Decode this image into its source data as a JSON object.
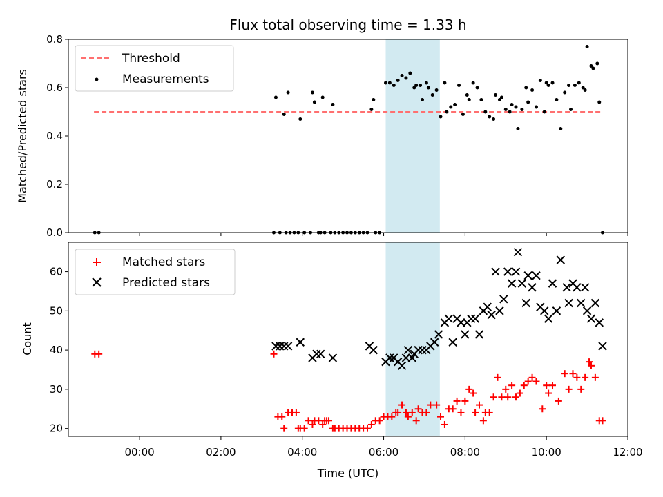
{
  "chart_data": {
    "type": "scatter",
    "title": "Flux total observing time = 1.33 h",
    "xlabel": "Time (UTC)",
    "x_unit": "hours UTC",
    "xlim": [
      -1.75,
      12.0
    ],
    "xticks": [
      0,
      2,
      4,
      6,
      8,
      10,
      12
    ],
    "xtick_labels": [
      "00:00",
      "02:00",
      "04:00",
      "06:00",
      "08:00",
      "10:00",
      "12:00"
    ],
    "observing_window": {
      "start": 6.05,
      "end": 7.38,
      "color": "#add8e6"
    },
    "panels": [
      {
        "ylabel": "Matched/Predicted stars",
        "ylim": [
          0,
          0.8
        ],
        "yticks": [
          0.0,
          0.2,
          0.4,
          0.6,
          0.8
        ],
        "ytick_labels": [
          "0.0",
          "0.2",
          "0.4",
          "0.6",
          "0.8"
        ],
        "legend": {
          "position": "upper-left",
          "entries": [
            "Threshold",
            "Measurements"
          ]
        },
        "series": [
          {
            "name": "Threshold",
            "kind": "dashed-line",
            "color": "#ff7070",
            "x": [
              -1.12,
              11.38
            ],
            "y": [
              0.5,
              0.5
            ]
          },
          {
            "name": "Measurements",
            "kind": "dot",
            "color": "#000000",
            "x": [
              -1.1,
              -1.0,
              3.3,
              3.35,
              3.45,
              3.55,
              3.6,
              3.65,
              3.7,
              3.8,
              3.9,
              3.95,
              4.05,
              4.2,
              4.25,
              4.3,
              4.4,
              4.45,
              4.5,
              4.55,
              4.7,
              4.75,
              4.8,
              4.9,
              5.0,
              5.1,
              5.2,
              5.3,
              5.4,
              5.5,
              5.6,
              5.7,
              5.75,
              5.8,
              5.9,
              6.05,
              6.15,
              6.25,
              6.35,
              6.45,
              6.55,
              6.65,
              6.75,
              6.8,
              6.9,
              6.95,
              7.05,
              7.1,
              7.2,
              7.3,
              7.4,
              7.5,
              7.55,
              7.65,
              7.75,
              7.85,
              7.95,
              8.05,
              8.1,
              8.2,
              8.3,
              8.4,
              8.5,
              8.6,
              8.7,
              8.75,
              8.85,
              8.9,
              9.0,
              9.1,
              9.15,
              9.25,
              9.3,
              9.4,
              9.5,
              9.55,
              9.65,
              9.75,
              9.85,
              9.95,
              10.0,
              10.05,
              10.15,
              10.25,
              10.35,
              10.45,
              10.55,
              10.6,
              10.7,
              10.8,
              10.9,
              10.95,
              11.0,
              11.1,
              11.15,
              11.25,
              11.3,
              11.38
            ],
            "y": [
              0,
              0,
              0,
              0.56,
              0,
              0.49,
              0,
              0.58,
              0,
              0,
              0,
              0.47,
              0,
              0,
              0.58,
              0.54,
              0,
              0,
              0.56,
              0,
              0,
              0.53,
              0,
              0,
              0,
              0,
              0,
              0,
              0,
              0,
              0,
              0.51,
              0.55,
              0,
              0,
              0.62,
              0.62,
              0.61,
              0.63,
              0.65,
              0.64,
              0.66,
              0.6,
              0.61,
              0.61,
              0.55,
              0.62,
              0.6,
              0.57,
              0.59,
              0.48,
              0.62,
              0.5,
              0.52,
              0.53,
              0.61,
              0.49,
              0.57,
              0.55,
              0.62,
              0.6,
              0.55,
              0.5,
              0.48,
              0.47,
              0.57,
              0.55,
              0.56,
              0.51,
              0.5,
              0.53,
              0.52,
              0.43,
              0.51,
              0.6,
              0.54,
              0.59,
              0.52,
              0.63,
              0.5,
              0.62,
              0.61,
              0.62,
              0.55,
              0.43,
              0.58,
              0.61,
              0.51,
              0.61,
              0.62,
              0.6,
              0.59,
              0.77,
              0.69,
              0.68,
              0.7,
              0.54,
              0
            ]
          }
        ]
      },
      {
        "ylabel": "Count",
        "ylim": [
          18,
          67.5
        ],
        "yticks": [
          20,
          30,
          40,
          50,
          60
        ],
        "ytick_labels": [
          "20",
          "30",
          "40",
          "50",
          "60"
        ],
        "legend": {
          "position": "upper-left",
          "entries": [
            "Matched stars",
            "Predicted stars"
          ]
        },
        "series": [
          {
            "name": "Matched stars",
            "kind": "plus",
            "color": "#ff0000",
            "x": [
              -1.1,
              -1.0,
              3.3,
              3.4,
              3.5,
              3.55,
              3.65,
              3.75,
              3.85,
              3.9,
              3.95,
              4.05,
              4.15,
              4.25,
              4.3,
              4.4,
              4.5,
              4.55,
              4.6,
              4.65,
              4.75,
              4.8,
              4.9,
              5.0,
              5.1,
              5.2,
              5.3,
              5.4,
              5.5,
              5.6,
              5.7,
              5.8,
              5.9,
              6.0,
              6.1,
              6.2,
              6.3,
              6.35,
              6.45,
              6.55,
              6.6,
              6.7,
              6.8,
              6.85,
              6.95,
              7.05,
              7.15,
              7.3,
              7.4,
              7.5,
              7.6,
              7.7,
              7.8,
              7.9,
              8.0,
              8.1,
              8.2,
              8.25,
              8.35,
              8.45,
              8.5,
              8.6,
              8.7,
              8.8,
              8.9,
              9.0,
              9.05,
              9.15,
              9.25,
              9.35,
              9.45,
              9.55,
              9.65,
              9.75,
              9.9,
              10.0,
              10.05,
              10.15,
              10.3,
              10.45,
              10.55,
              10.65,
              10.75,
              10.85,
              10.95,
              11.05,
              11.1,
              11.2,
              11.3,
              11.38
            ],
            "y": [
              39,
              39,
              39,
              23,
              23,
              20,
              24,
              24,
              24,
              20,
              20,
              20,
              22,
              21,
              22,
              22,
              21,
              22,
              22,
              22,
              20,
              20,
              20,
              20,
              20,
              20,
              20,
              20,
              20,
              20,
              21,
              22,
              22,
              23,
              23,
              23,
              24,
              24,
              26,
              24,
              23,
              24,
              22,
              25,
              24,
              24,
              26,
              26,
              23,
              21,
              25,
              25,
              27,
              24,
              27,
              30,
              29,
              24,
              26,
              22,
              24,
              24,
              28,
              33,
              28,
              30,
              28,
              31,
              28,
              29,
              31,
              32,
              33,
              32,
              25,
              31,
              29,
              31,
              27,
              34,
              30,
              34,
              33,
              30,
              33,
              37,
              36,
              33,
              22,
              22
            ]
          },
          {
            "name": "Predicted stars",
            "kind": "x",
            "color": "#000000",
            "x": [
              3.35,
              3.45,
              3.55,
              3.65,
              3.95,
              4.25,
              4.35,
              4.45,
              4.75,
              5.65,
              5.75,
              6.05,
              6.15,
              6.25,
              6.35,
              6.45,
              6.55,
              6.6,
              6.7,
              6.75,
              6.85,
              6.95,
              7.05,
              7.15,
              7.25,
              7.35,
              7.5,
              7.6,
              7.7,
              7.8,
              7.9,
              8.0,
              8.05,
              8.15,
              8.25,
              8.35,
              8.45,
              8.55,
              8.65,
              8.75,
              8.85,
              8.95,
              9.05,
              9.15,
              9.25,
              9.3,
              9.4,
              9.5,
              9.55,
              9.65,
              9.75,
              9.85,
              9.95,
              10.05,
              10.15,
              10.25,
              10.35,
              10.5,
              10.55,
              10.65,
              10.75,
              10.85,
              10.95,
              11.0,
              11.1,
              11.2,
              11.3,
              11.38
            ],
            "y": [
              41,
              41,
              41,
              41,
              42,
              38,
              39,
              39,
              38,
              41,
              40,
              37,
              38,
              38,
              37,
              36,
              38,
              40,
              38,
              39,
              40,
              40,
              40,
              41,
              42,
              44,
              47,
              48,
              42,
              48,
              47,
              44,
              47,
              48,
              48,
              44,
              50,
              51,
              49,
              60,
              50,
              53,
              60,
              57,
              60,
              65,
              57,
              52,
              59,
              56,
              59,
              51,
              50,
              48,
              57,
              50,
              63,
              56,
              52,
              57,
              56,
              52,
              56,
              50,
              48,
              52,
              47,
              41
            ]
          }
        ]
      }
    ]
  }
}
